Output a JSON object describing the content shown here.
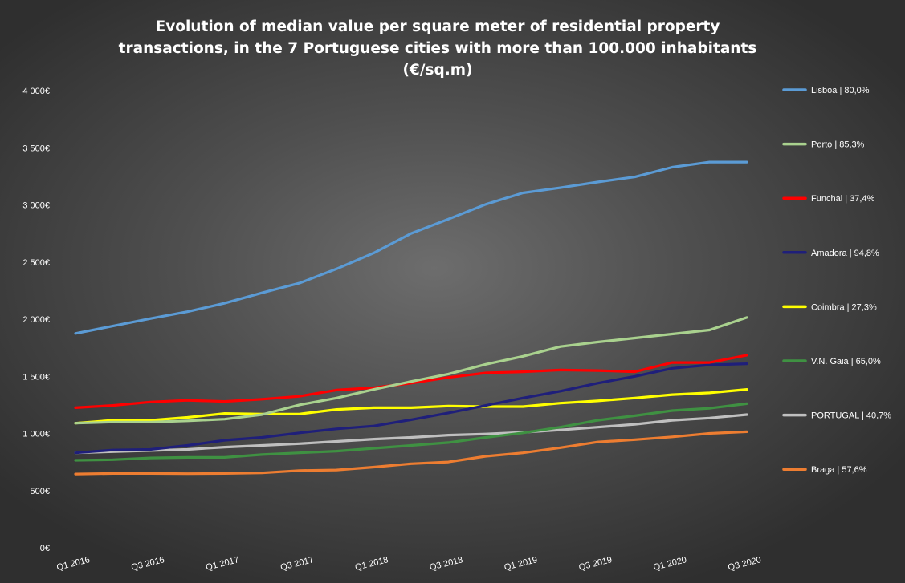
{
  "chart_data": {
    "type": "line",
    "title_lines": [
      "Evolution of median value per square meter of residential property",
      "transactions, in the 7 Portuguese cities with more than 100.000 inhabitants",
      "(€/sq.m)"
    ],
    "x": [
      "Q1 2016",
      "Q2 2016",
      "Q3 2016",
      "Q4 2016",
      "Q1 2017",
      "Q2 2017",
      "Q3 2017",
      "Q4 2017",
      "Q1 2018",
      "Q2 2018",
      "Q3 2018",
      "Q4 2018",
      "Q1 2019",
      "Q2 2019",
      "Q3 2019",
      "Q4 2019",
      "Q1 2020",
      "Q2 2020",
      "Q3 2020"
    ],
    "x_tick_labels": [
      "Q1 2016",
      "Q3 2016",
      "Q1 2017",
      "Q3 2017",
      "Q1 2018",
      "Q3 2018",
      "Q1 2019",
      "Q3 2019",
      "Q1 2020",
      "Q3 2020"
    ],
    "ylim": [
      0,
      4000
    ],
    "y_ticks": [
      0,
      500,
      1000,
      1500,
      2000,
      2500,
      3000,
      3500,
      4000
    ],
    "y_tick_labels": [
      "0€",
      "500€",
      "1 000€",
      "1 500€",
      "2 000€",
      "2 500€",
      "3 000€",
      "3 500€",
      "4 000€"
    ],
    "grid": false,
    "legend_position": "right",
    "series": [
      {
        "name": "Lisboa | 80,0%",
        "color": "#5b9bd5",
        "values": [
          1875,
          1940,
          2005,
          2065,
          2140,
          2230,
          2315,
          2440,
          2580,
          2750,
          2875,
          3005,
          3105,
          3150,
          3200,
          3245,
          3330,
          3375,
          3375
        ]
      },
      {
        "name": "Porto | 85,3%",
        "color": "#a9d18e",
        "values": [
          1090,
          1100,
          1100,
          1110,
          1125,
          1165,
          1250,
          1310,
          1385,
          1455,
          1520,
          1605,
          1675,
          1760,
          1800,
          1835,
          1870,
          1905,
          2015
        ]
      },
      {
        "name": "Funchal | 37,4%",
        "color": "#ff0000",
        "values": [
          1225,
          1245,
          1275,
          1290,
          1280,
          1300,
          1325,
          1380,
          1400,
          1440,
          1490,
          1530,
          1540,
          1555,
          1550,
          1540,
          1620,
          1620,
          1685
        ]
      },
      {
        "name": "Amadora | 94,8%",
        "color": "#1f1f7a",
        "values": [
          830,
          855,
          860,
          895,
          940,
          965,
          1005,
          1040,
          1065,
          1120,
          1180,
          1245,
          1310,
          1370,
          1440,
          1500,
          1570,
          1600,
          1610
        ]
      },
      {
        "name": "Coimbra | 27,3%",
        "color": "#ffff00",
        "values": [
          1090,
          1115,
          1115,
          1140,
          1175,
          1170,
          1170,
          1210,
          1225,
          1225,
          1240,
          1235,
          1235,
          1265,
          1285,
          1310,
          1340,
          1355,
          1385
        ]
      },
      {
        "name": "V.N. Gaia | 65,0%",
        "color": "#3f9142",
        "values": [
          765,
          770,
          785,
          790,
          790,
          815,
          830,
          845,
          870,
          895,
          920,
          965,
          1005,
          1055,
          1115,
          1155,
          1200,
          1220,
          1260
        ]
      },
      {
        "name": "PORTUGAL | 40,7%",
        "color": "#bfbfbf",
        "values": [
          830,
          840,
          850,
          860,
          880,
          895,
          910,
          930,
          950,
          965,
          985,
          995,
          1010,
          1030,
          1055,
          1080,
          1115,
          1135,
          1165
        ]
      },
      {
        "name": "Braga | 57,6%",
        "color": "#ed7d31",
        "values": [
          645,
          650,
          650,
          648,
          650,
          655,
          675,
          680,
          705,
          735,
          750,
          800,
          830,
          875,
          925,
          945,
          970,
          1000,
          1015
        ]
      }
    ]
  }
}
